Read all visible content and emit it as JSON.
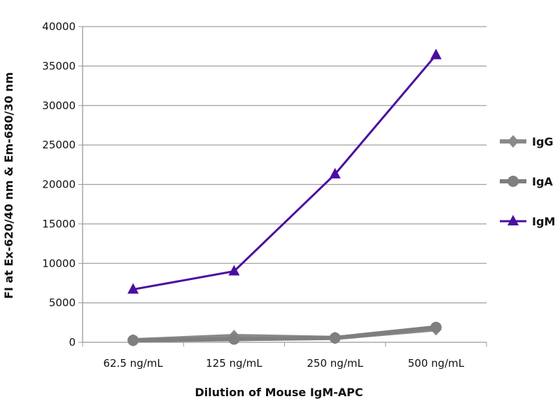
{
  "chart_data": {
    "type": "line",
    "title": "",
    "xlabel": "Dilution of Mouse IgM-APC",
    "ylabel": "FI at Ex-620/40 nm & Em-680/30 nm",
    "categories": [
      "62.5 ng/mL",
      "125 ng/mL",
      "250 ng/mL",
      "500 ng/mL"
    ],
    "ylim": [
      0,
      40000
    ],
    "yticks": [
      "0",
      "5000",
      "10000",
      "15000",
      "20000",
      "25000",
      "30000",
      "35000",
      "40000"
    ],
    "grid": true,
    "legend": "right",
    "series": [
      {
        "name": "IgG",
        "marker": "diamond",
        "color": "#8a8a8a",
        "values": [
          250,
          800,
          550,
          1650
        ]
      },
      {
        "name": "IgA",
        "marker": "circle",
        "color": "#7f7f7f",
        "values": [
          250,
          400,
          550,
          1900
        ]
      },
      {
        "name": "IgM",
        "marker": "triangle",
        "color": "#4b0fa0",
        "values": [
          6700,
          9000,
          21300,
          36400
        ]
      }
    ]
  }
}
